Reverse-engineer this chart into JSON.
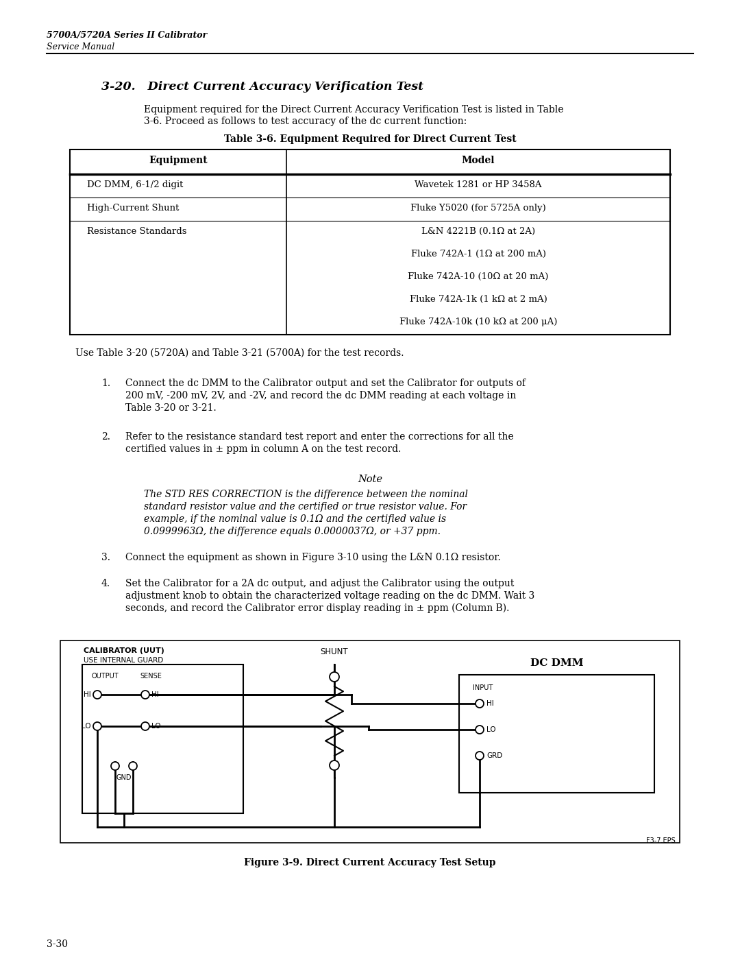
{
  "page_title_bold": "5700A/5720A Series II Calibrator",
  "page_title_italic": "Service Manual",
  "section_title": "3-20.   Direct Current Accuracy Verification Test",
  "section_intro_1": "Equipment required for the Direct Current Accuracy Verification Test is listed in Table",
  "section_intro_2": "3-6. Proceed as follows to test accuracy of the dc current function:",
  "table_title": "Table 3-6. Equipment Required for Direct Current Test",
  "table_headers": [
    "Equipment",
    "Model"
  ],
  "table_rows": [
    [
      "DC DMM, 6-1/2 digit",
      "Wavetek 1281 or HP 3458A"
    ],
    [
      "High-Current Shunt",
      "Fluke Y5020 (for 5725A only)"
    ],
    [
      "Resistance Standards",
      "L&N 4221B (0.1Ω at 2A)"
    ]
  ],
  "model_extra": [
    "Fluke 742A-1 (1Ω at 200 mA)",
    "Fluke 742A-10 (10Ω at 20 mA)",
    "Fluke 742A-1k (1 kΩ at 2 mA)",
    "Fluke 742A-10k (10 kΩ at 200 μA)"
  ],
  "para_after_table": "Use Table 3-20 (5720A) and Table 3-21 (5700A) for the test records.",
  "step1_num": "1.",
  "step1_lines": [
    "Connect the dc DMM to the Calibrator output and set the Calibrator for outputs of",
    "200 mV, -200 mV, 2V, and -2V, and record the dc DMM reading at each voltage in",
    "Table 3-20 or 3-21."
  ],
  "step2_num": "2.",
  "step2_lines": [
    "Refer to the resistance standard test report and enter the corrections for all the",
    "certified values in ± ppm in column A on the test record."
  ],
  "note_title": "Note",
  "note_lines": [
    "The STD RES CORRECTION is the difference between the nominal",
    "standard resistor value and the certified or true resistor value. For",
    "example, if the nominal value is 0.1Ω and the certified value is",
    "0.0999963Ω, the difference equals 0.0000037Ω, or +37 ppm."
  ],
  "step3_num": "3.",
  "step3_line": "Connect the equipment as shown in Figure 3-10 using the L&N 0.1Ω resistor.",
  "step4_num": "4.",
  "step4_lines": [
    "Set the Calibrator for a 2A dc output, and adjust the Calibrator using the output",
    "adjustment knob to obtain the characterized voltage reading on the dc DMM. Wait 3",
    "seconds, and record the Calibrator error display reading in ± ppm (Column B)."
  ],
  "figure_caption": "Figure 3-9. Direct Current Accuracy Test Setup",
  "figure_label": "F3-7.EPS",
  "page_number": "3-30"
}
